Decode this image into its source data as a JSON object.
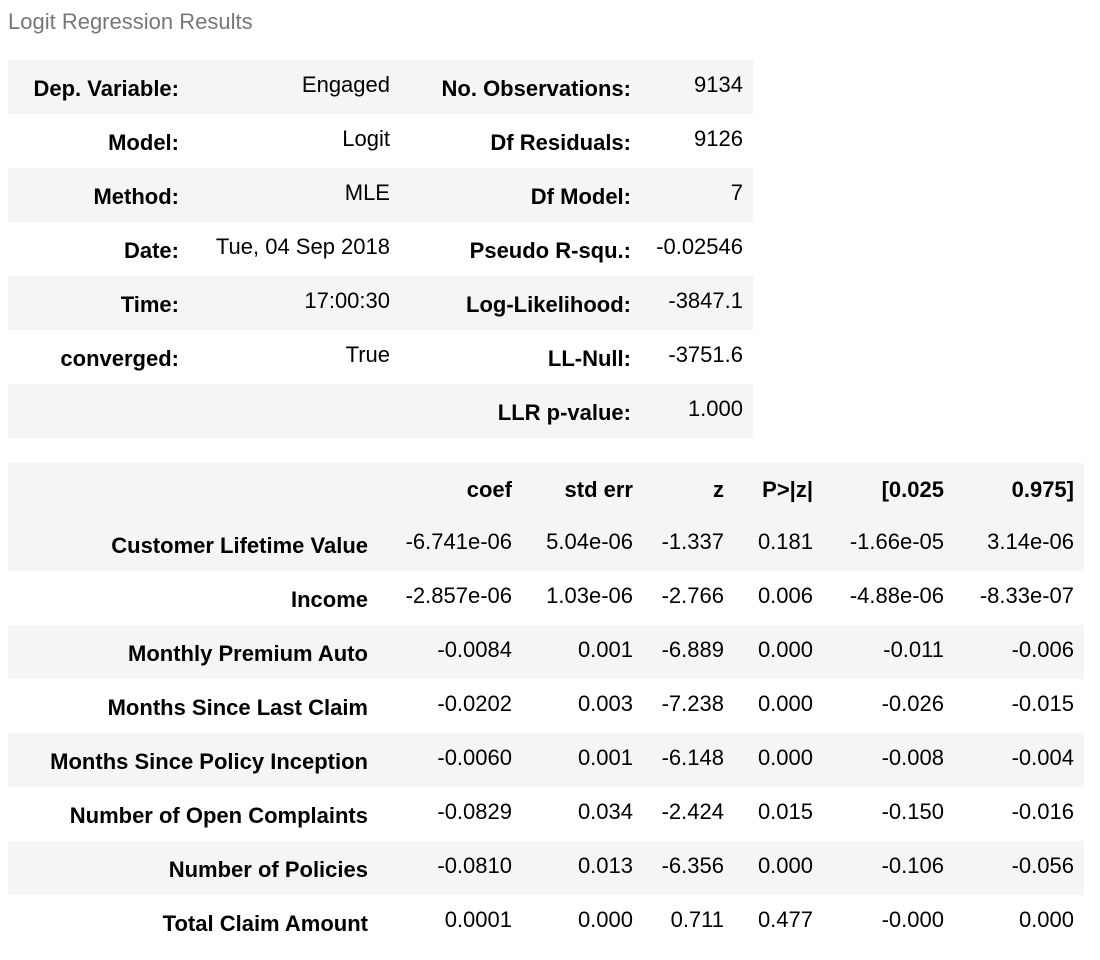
{
  "caption": "Logit Regression Results",
  "summary": {
    "rows": [
      [
        "Dep. Variable:",
        "Engaged",
        "No. Observations:",
        "9134"
      ],
      [
        "Model:",
        "Logit",
        "Df Residuals:",
        "9126"
      ],
      [
        "Method:",
        "MLE",
        "Df Model:",
        "7"
      ],
      [
        "Date:",
        "Tue, 04 Sep 2018",
        "Pseudo R-squ.:",
        "-0.02546"
      ],
      [
        "Time:",
        "17:00:30",
        "Log-Likelihood:",
        "-3847.1"
      ],
      [
        "converged:",
        "True",
        "LL-Null:",
        "-3751.6"
      ],
      [
        "",
        "",
        "LLR p-value:",
        "1.000"
      ]
    ]
  },
  "coefficients": {
    "headers": [
      "",
      "coef",
      "std err",
      "z",
      "P>|z|",
      "[0.025",
      "0.975]"
    ],
    "rows": [
      [
        "Customer Lifetime Value",
        "-6.741e-06",
        "5.04e-06",
        "-1.337",
        "0.181",
        "-1.66e-05",
        "3.14e-06"
      ],
      [
        "Income",
        "-2.857e-06",
        "1.03e-06",
        "-2.766",
        "0.006",
        "-4.88e-06",
        "-8.33e-07"
      ],
      [
        "Monthly Premium Auto",
        "-0.0084",
        "0.001",
        "-6.889",
        "0.000",
        "-0.011",
        "-0.006"
      ],
      [
        "Months Since Last Claim",
        "-0.0202",
        "0.003",
        "-7.238",
        "0.000",
        "-0.026",
        "-0.015"
      ],
      [
        "Months Since Policy Inception",
        "-0.0060",
        "0.001",
        "-6.148",
        "0.000",
        "-0.008",
        "-0.004"
      ],
      [
        "Number of Open Complaints",
        "-0.0829",
        "0.034",
        "-2.424",
        "0.015",
        "-0.150",
        "-0.016"
      ],
      [
        "Number of Policies",
        "-0.0810",
        "0.013",
        "-6.356",
        "0.000",
        "-0.106",
        "-0.056"
      ],
      [
        "Total Claim Amount",
        "0.0001",
        "0.000",
        "0.711",
        "0.477",
        "-0.000",
        "0.000"
      ]
    ]
  }
}
